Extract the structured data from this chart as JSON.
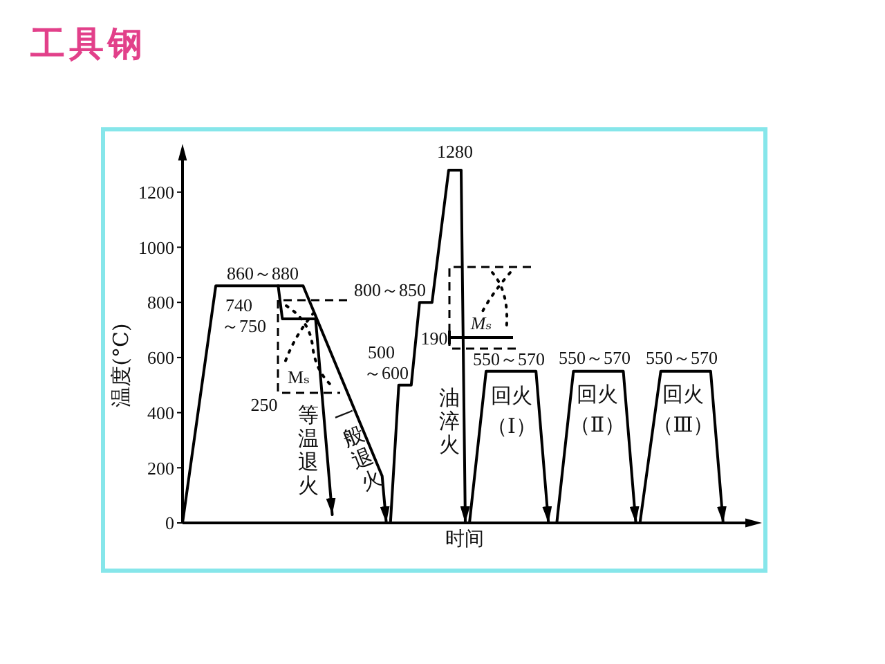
{
  "chart_data": {
    "type": "line",
    "title": "工具钢",
    "xlabel": "时间",
    "ylabel": "温度(°C)",
    "categories": [
      null,
      null,
      null,
      null,
      null,
      null,
      null,
      null,
      null,
      null,
      null,
      null,
      null,
      null,
      null,
      null,
      null,
      null,
      null,
      null,
      null,
      null,
      null,
      null,
      null,
      null,
      null,
      null,
      null,
      null,
      null,
      null,
      null,
      null,
      null,
      null,
      null,
      null,
      null,
      null,
      null,
      null,
      null,
      null,
      null,
      null,
      null,
      null,
      null,
      null,
      null,
      null,
      null,
      null,
      null,
      null,
      null,
      null,
      null,
      null,
      null,
      null,
      null,
      null,
      null,
      null,
      null,
      null,
      null,
      null,
      null,
      null,
      null,
      null,
      null,
      null,
      null,
      null,
      null,
      null,
      null,
      null,
      null,
      null,
      null,
      null,
      null,
      null,
      null,
      null,
      null,
      null,
      null,
      null,
      null,
      null,
      null,
      null,
      null,
      null,
      null,
      null,
      null,
      null,
      null,
      null,
      null,
      null,
      null,
      null,
      null,
      null,
      null,
      null,
      null,
      null,
      null,
      null,
      null,
      null,
      null,
      null,
      null,
      null,
      null,
      null,
      null,
      null,
      null,
      null,
      null,
      null,
      null,
      null,
      null,
      null,
      null,
      null,
      null
    ],
    "series": [
      {
        "name": "一般退火",
        "color": "#000000",
        "values": [
          0,
          null,
          null,
          null,
          null,
          null,
          null,
          null,
          860,
          null,
          null,
          null,
          null,
          null,
          null,
          null,
          null,
          null,
          null,
          null,
          null,
          null,
          null,
          null,
          null,
          null,
          null,
          null,
          null,
          860,
          null,
          null,
          null,
          null,
          null,
          null,
          null,
          null,
          null,
          null,
          null,
          null,
          null,
          null,
          null,
          null,
          null,
          null,
          170,
          0,
          null,
          null,
          null,
          null,
          null,
          null,
          null,
          null,
          null,
          null,
          null,
          null,
          null,
          null,
          null,
          null,
          null,
          null,
          null,
          null,
          null,
          null,
          null,
          null,
          null,
          null,
          null,
          null,
          null,
          null,
          null,
          null,
          null,
          null,
          null,
          null,
          null,
          null,
          null,
          null,
          null,
          null,
          null,
          null,
          null,
          null,
          null,
          null,
          null,
          null,
          null,
          null,
          null,
          null,
          null,
          null,
          null,
          null,
          null,
          null,
          null,
          null,
          null,
          null,
          null,
          null,
          null,
          null,
          null,
          null,
          null,
          null,
          null,
          null,
          null,
          null,
          null,
          null,
          null,
          null,
          null,
          null,
          null,
          null,
          null,
          null,
          null,
          null,
          null
        ]
      },
      {
        "name": "等温退火",
        "color": "#000000",
        "values": [
          null,
          null,
          null,
          null,
          null,
          null,
          null,
          null,
          null,
          null,
          null,
          null,
          null,
          null,
          null,
          null,
          null,
          null,
          null,
          null,
          null,
          null,
          null,
          860,
          740,
          null,
          null,
          null,
          null,
          null,
          null,
          null,
          740,
          null,
          null,
          null,
          30,
          null,
          null,
          null,
          null,
          null,
          null,
          null,
          null,
          null,
          null,
          null,
          null,
          null,
          null,
          null,
          null,
          null,
          null,
          null,
          null,
          null,
          null,
          null,
          null,
          null,
          null,
          null,
          null,
          null,
          null,
          null,
          null,
          null,
          null,
          null,
          null,
          null,
          null,
          null,
          null,
          null,
          null,
          null,
          null,
          null,
          null,
          null,
          null,
          null,
          null,
          null,
          null,
          null,
          null,
          null,
          null,
          null,
          null,
          null,
          null,
          null,
          null,
          null,
          null,
          null,
          null,
          null,
          null,
          null,
          null,
          null,
          null,
          null,
          null,
          null,
          null,
          null,
          null,
          null,
          null,
          null,
          null,
          null,
          null,
          null,
          null,
          null,
          null,
          null,
          null,
          null,
          null,
          null,
          null,
          null,
          null,
          null,
          null,
          null,
          null,
          null,
          null
        ]
      },
      {
        "name": "油淬火",
        "color": "#000000",
        "values": [
          null,
          null,
          null,
          null,
          null,
          null,
          null,
          null,
          null,
          null,
          null,
          null,
          null,
          null,
          null,
          null,
          null,
          null,
          null,
          null,
          null,
          null,
          null,
          null,
          null,
          null,
          null,
          null,
          null,
          null,
          null,
          null,
          null,
          null,
          null,
          null,
          null,
          null,
          null,
          null,
          null,
          null,
          null,
          null,
          null,
          null,
          null,
          null,
          null,
          null,
          0,
          null,
          500,
          null,
          null,
          500,
          null,
          800,
          null,
          null,
          800,
          null,
          null,
          null,
          1280,
          null,
          null,
          1280,
          0,
          null,
          null,
          null,
          null,
          null,
          null,
          null,
          null,
          null,
          null,
          null,
          null,
          null,
          null,
          null,
          null,
          null,
          null,
          null,
          null,
          null,
          null,
          null,
          null,
          null,
          null,
          null,
          null,
          null,
          null,
          null,
          null,
          null,
          null,
          null,
          null,
          null,
          null,
          null,
          null,
          null,
          null,
          null,
          null,
          null,
          null,
          null,
          null,
          null,
          null,
          null,
          null,
          null,
          null,
          null,
          null,
          null,
          null,
          null,
          null,
          null,
          null,
          null,
          null,
          null,
          null,
          null,
          null,
          null,
          null
        ]
      },
      {
        "name": "回火（Ⅰ）",
        "color": "#000000",
        "values": [
          null,
          null,
          null,
          null,
          null,
          null,
          null,
          null,
          null,
          null,
          null,
          null,
          null,
          null,
          null,
          null,
          null,
          null,
          null,
          null,
          null,
          null,
          null,
          null,
          null,
          null,
          null,
          null,
          null,
          null,
          null,
          null,
          null,
          null,
          null,
          null,
          null,
          null,
          null,
          null,
          null,
          null,
          null,
          null,
          null,
          null,
          null,
          null,
          null,
          null,
          null,
          null,
          null,
          null,
          null,
          null,
          null,
          null,
          null,
          null,
          null,
          null,
          null,
          null,
          null,
          null,
          null,
          null,
          null,
          0,
          null,
          null,
          null,
          550,
          null,
          null,
          null,
          null,
          null,
          null,
          null,
          null,
          null,
          null,
          null,
          550,
          null,
          null,
          0,
          null,
          null,
          null,
          null,
          null,
          null,
          null,
          null,
          null,
          null,
          null,
          null,
          null,
          null,
          null,
          null,
          null,
          null,
          null,
          null,
          null,
          null,
          null,
          null,
          null,
          null,
          null,
          null,
          null,
          null,
          null,
          null,
          null,
          null,
          null,
          null,
          null,
          null,
          null,
          null,
          null,
          null,
          null,
          null,
          null,
          null,
          null,
          null,
          null,
          null
        ]
      },
      {
        "name": "回火（Ⅱ）",
        "color": "#000000",
        "values": [
          null,
          null,
          null,
          null,
          null,
          null,
          null,
          null,
          null,
          null,
          null,
          null,
          null,
          null,
          null,
          null,
          null,
          null,
          null,
          null,
          null,
          null,
          null,
          null,
          null,
          null,
          null,
          null,
          null,
          null,
          null,
          null,
          null,
          null,
          null,
          null,
          null,
          null,
          null,
          null,
          null,
          null,
          null,
          null,
          null,
          null,
          null,
          null,
          null,
          null,
          null,
          null,
          null,
          null,
          null,
          null,
          null,
          null,
          null,
          null,
          null,
          null,
          null,
          null,
          null,
          null,
          null,
          null,
          null,
          null,
          null,
          null,
          null,
          null,
          null,
          null,
          null,
          null,
          null,
          null,
          null,
          null,
          null,
          null,
          null,
          null,
          null,
          null,
          null,
          null,
          0,
          null,
          null,
          null,
          550,
          null,
          null,
          null,
          null,
          null,
          null,
          null,
          null,
          null,
          null,
          null,
          550,
          null,
          null,
          0,
          null,
          null,
          null,
          null,
          null,
          null,
          null,
          null,
          null,
          null,
          null,
          null,
          null,
          null,
          null,
          null,
          null,
          null,
          null,
          null,
          null,
          null,
          null,
          null,
          null,
          null,
          null,
          null,
          null
        ]
      },
      {
        "name": "回火（Ⅲ）",
        "color": "#000000",
        "values": [
          null,
          null,
          null,
          null,
          null,
          null,
          null,
          null,
          null,
          null,
          null,
          null,
          null,
          null,
          null,
          null,
          null,
          null,
          null,
          null,
          null,
          null,
          null,
          null,
          null,
          null,
          null,
          null,
          null,
          null,
          null,
          null,
          null,
          null,
          null,
          null,
          null,
          null,
          null,
          null,
          null,
          null,
          null,
          null,
          null,
          null,
          null,
          null,
          null,
          null,
          null,
          null,
          null,
          null,
          null,
          null,
          null,
          null,
          null,
          null,
          null,
          null,
          null,
          null,
          null,
          null,
          null,
          null,
          null,
          null,
          null,
          null,
          null,
          null,
          null,
          null,
          null,
          null,
          null,
          null,
          null,
          null,
          null,
          null,
          null,
          null,
          null,
          null,
          null,
          null,
          null,
          null,
          null,
          null,
          null,
          null,
          null,
          null,
          null,
          null,
          null,
          null,
          null,
          null,
          null,
          null,
          null,
          null,
          null,
          null,
          0,
          null,
          null,
          null,
          null,
          550,
          null,
          null,
          null,
          null,
          null,
          null,
          null,
          null,
          null,
          null,
          null,
          550,
          null,
          null,
          0,
          null,
          null,
          null,
          null,
          null,
          null,
          null,
          null
        ]
      }
    ],
    "ylim": [
      0,
      1350
    ],
    "yticks": [
      0,
      200,
      400,
      600,
      800,
      1000,
      1200
    ],
    "tick_labels": "y",
    "marker": "none",
    "line_style": "solid",
    "annotations": [
      "860～880",
      "740～750",
      "Mₛ",
      "250",
      "800～850",
      "500～600",
      "1280",
      "Mₛ",
      "190",
      "550～570",
      "550～570",
      "550～570"
    ]
  }
}
